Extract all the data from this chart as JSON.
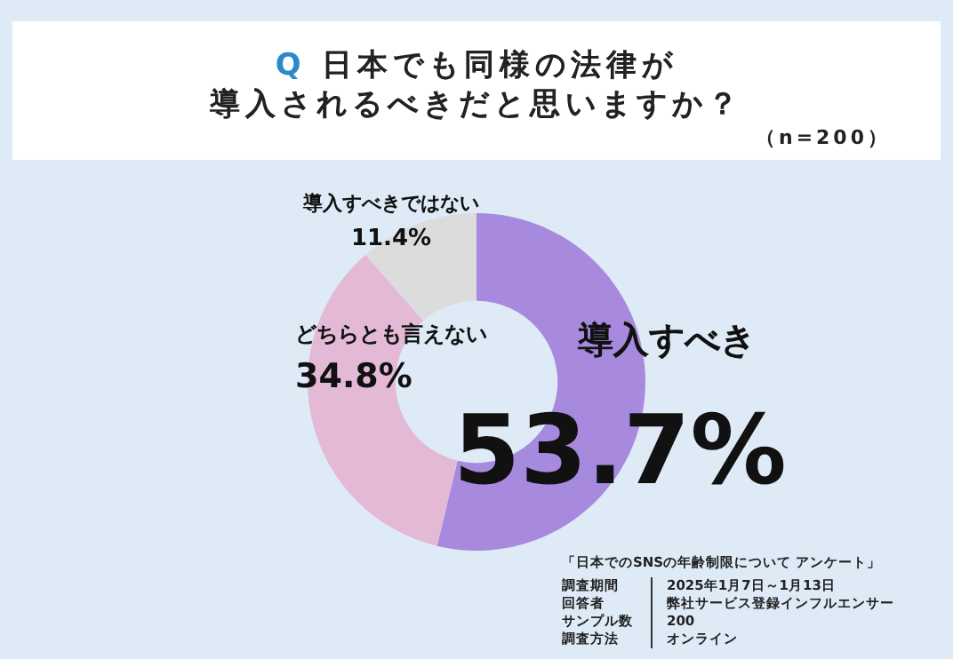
{
  "chart_data": {
    "type": "donut",
    "title": "Q 日本でも同様の法律が導入されるべきだと思いますか？",
    "subtitle": "（n=200）",
    "categories": [
      "導入すべき",
      "どちらとも言えない",
      "導入すべきではない"
    ],
    "values": [
      53.7,
      34.8,
      11.4
    ],
    "colors": [
      "#a78ade",
      "#e3b9d5",
      "#dcdcdc"
    ],
    "value_labels": [
      "53.7%",
      "34.8%",
      "11.4%"
    ],
    "legend": false,
    "annotations": [
      "「日本でのSNSの年齢制限について アンケート」",
      "調査期間",
      "2025年1月7日～1月13日",
      "回答者",
      "弊社サービス登録インフルエンサー",
      "サンプル数",
      "200",
      "調査方法",
      "オンライン"
    ]
  }
}
